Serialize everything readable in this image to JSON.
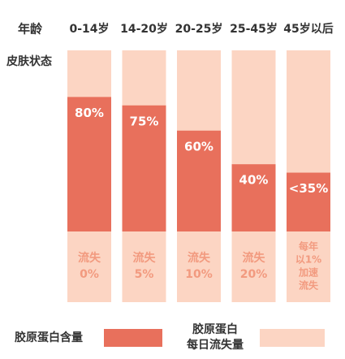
{
  "chart_data": {
    "type": "bar",
    "row_header": "年龄",
    "column_header": "皮肤状态",
    "categories": [
      "0-14岁",
      "14-20岁",
      "20-25岁",
      "25-45岁",
      "45岁以后"
    ],
    "ylim": [
      0,
      100
    ],
    "series": [
      {
        "name": "胶原蛋白含量",
        "color": "#e8705c",
        "values": [
          80,
          75,
          60,
          40,
          35
        ],
        "value_labels": [
          "80%",
          "75%",
          "60%",
          "40%",
          "<35%"
        ]
      }
    ],
    "loss": {
      "name": [
        "胶原蛋白",
        "每日流失量"
      ],
      "color": "#fcd5c3",
      "text_color": "#f29a7f",
      "labels": [
        [
          "流失",
          "0%"
        ],
        [
          "流失",
          "5%"
        ],
        [
          "流失",
          "10%"
        ],
        [
          "流失",
          "20%"
        ],
        [
          "每年",
          "以1%",
          "加速",
          "流失"
        ]
      ]
    }
  }
}
